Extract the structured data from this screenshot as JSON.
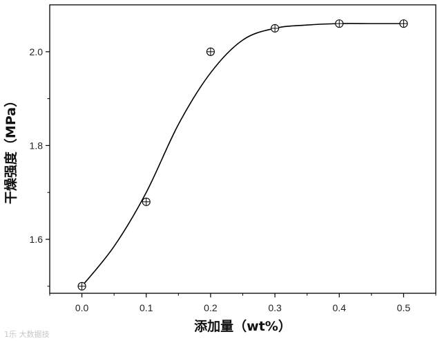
{
  "chart_data": {
    "type": "scatter",
    "title": "",
    "xlabel": "添加量（wt%）",
    "ylabel": "干燥强度（MPa）",
    "xlim": [
      -0.05,
      0.55
    ],
    "ylim": [
      1.485,
      2.1
    ],
    "x_ticks": [
      0.0,
      0.1,
      0.2,
      0.3,
      0.4,
      0.5
    ],
    "x_tick_labels": [
      "0.0",
      "0.1",
      "0.2",
      "0.3",
      "0.4",
      "0.5"
    ],
    "y_ticks": [
      1.6,
      1.8,
      2.0
    ],
    "y_tick_labels": [
      "1.6",
      "1.8",
      "2.0"
    ],
    "grid": false,
    "legend": "none",
    "series": [
      {
        "marker": "circle-plus",
        "color": "#000000",
        "x": [
          0.0,
          0.1,
          0.2,
          0.3,
          0.4,
          0.5
        ],
        "y": [
          1.5,
          1.68,
          2.0,
          2.05,
          2.06,
          2.06
        ]
      }
    ],
    "fit_curve": {
      "style": "smooth sigmoid",
      "color": "#000000",
      "x": [
        0.0,
        0.05,
        0.1,
        0.15,
        0.2,
        0.25,
        0.3,
        0.35,
        0.4,
        0.45,
        0.5
      ],
      "y": [
        1.5,
        1.585,
        1.7,
        1.845,
        1.955,
        2.025,
        2.05,
        2.057,
        2.06,
        2.06,
        2.06
      ]
    }
  },
  "watermark": {
    "text": "1乐 大数据技"
  }
}
